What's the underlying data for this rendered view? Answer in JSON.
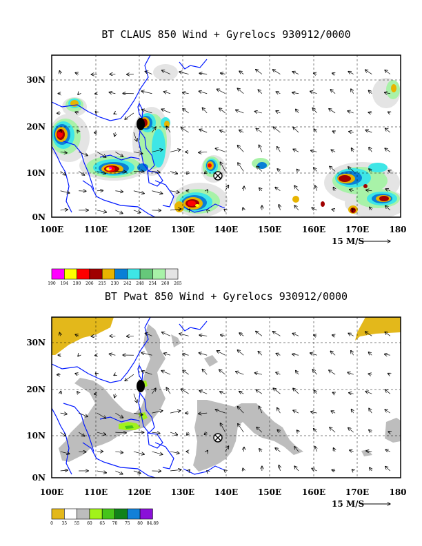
{
  "panels": [
    {
      "title": "BT CLAUS 850 Wind + Gyrelocs 930912/0000",
      "x_ticks": [
        "100E",
        "110E",
        "120E",
        "130E",
        "140E",
        "150E",
        "160E",
        "170E",
        "180"
      ],
      "y_ticks": [
        "30N",
        "20N",
        "10N",
        "0N"
      ],
      "scale_label": "15 M/S",
      "legend_labels": [
        "190",
        "194",
        "200",
        "206",
        "215",
        "230",
        "242",
        "248",
        "254",
        "260",
        "265"
      ],
      "legend_colors": [
        "#ff00ff",
        "#ffff00",
        "#ff0000",
        "#a00000",
        "#e8b400",
        "#0a7fd6",
        "#3ee6e6",
        "#66c87a",
        "#a8f2a8",
        "#e4e4e4"
      ]
    },
    {
      "title": "BT Pwat 850 Wind + Gyrelocs 930912/0000",
      "x_ticks": [
        "100E",
        "110E",
        "120E",
        "130E",
        "140E",
        "150E",
        "160E",
        "170E",
        "180"
      ],
      "y_ticks": [
        "30N",
        "20N",
        "10N",
        "0N"
      ],
      "scale_label": "15 M/S",
      "legend_labels": [
        "0",
        "35",
        "55",
        "60",
        "65",
        "70",
        "75",
        "80",
        "84.89"
      ],
      "legend_colors": [
        "#e3b81b",
        "#ffffff",
        "#bdbdbd",
        "#a2f21a",
        "#46c41a",
        "#10821a",
        "#1280d8",
        "#8a10d8"
      ]
    }
  ],
  "map_extent": {
    "lon": [
      100,
      180
    ],
    "lat": [
      0,
      35
    ],
    "lon_grid_step": 10,
    "lat_grid_step": 10
  },
  "gyre_locations": [
    {
      "lon": 138,
      "lat": 9,
      "symbol": "circled-x"
    },
    {
      "lon": 121,
      "lat": 20.5,
      "symbol": "typhoon-dot"
    }
  ],
  "colors": {
    "coast": "#0018ff",
    "grid": "#000000",
    "vector": "#000000"
  }
}
